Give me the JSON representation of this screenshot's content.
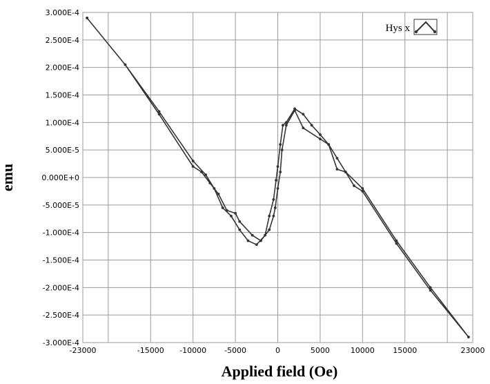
{
  "chart_data": {
    "type": "line",
    "title": "",
    "xlabel": "Applied field (Oe)",
    "ylabel": "emu",
    "xlim": [
      -23000,
      23000
    ],
    "ylim": [
      -0.0003,
      0.0003
    ],
    "x_ticks": [
      -23000,
      -15000,
      -10000,
      -5000,
      0,
      5000,
      10000,
      15000,
      23000
    ],
    "x_tick_labels": [
      "-23000",
      "-15000",
      "-10000",
      "-5000",
      "0",
      "5000",
      "10000",
      "15000",
      "23000"
    ],
    "y_ticks": [
      0.0003,
      0.00025,
      0.0002,
      0.00015,
      0.0001,
      5e-05,
      0,
      -5e-05,
      -0.0001,
      -0.00015,
      -0.0002,
      -0.00025,
      -0.0003
    ],
    "y_tick_labels": [
      "3.000E-4",
      "2.500E-4",
      "2.000E-4",
      "1.500E-4",
      "1.000E-4",
      "5.000E-5",
      "0.000E+0",
      "-5.000E-5",
      "-1.000E-4",
      "-1.500E-4",
      "-2.000E-4",
      "-2.500E-4",
      "-3.000E-4"
    ],
    "x_gridlines": [
      -23000,
      -20000,
      -15000,
      -10000,
      -5000,
      0,
      5000,
      10000,
      15000,
      20000,
      23000
    ],
    "grid": true,
    "legend": {
      "placement": "top-right",
      "entries": [
        "Hys x"
      ]
    },
    "series": [
      {
        "name": "Hys x",
        "color": "#333333",
        "x": [
          22500,
          18000,
          14000,
          10000,
          8000,
          7000,
          6000,
          5000,
          3000,
          2000,
          1000,
          500,
          300,
          0,
          -300,
          -500,
          -1000,
          -2000,
          -3000,
          -4500,
          -5000,
          -6000,
          -7000,
          -8000,
          -9000,
          -10000,
          -14000,
          -18000,
          -22500,
          -22500,
          -18000,
          -14000,
          -10000,
          -8500,
          -7500,
          -6500,
          -5500,
          -4500,
          -3500,
          -2500,
          -1500,
          -1000,
          -500,
          -200,
          0,
          300,
          600,
          1000,
          2000,
          3000,
          4000,
          5000,
          6000,
          7000,
          8000,
          9000,
          10000,
          14000,
          18000,
          22500
        ],
        "y": [
          -0.00029,
          -0.0002,
          -0.000115,
          -2e-05,
          1e-05,
          3.5e-05,
          6e-05,
          7e-05,
          9e-05,
          0.000122,
          9.5e-05,
          5e-05,
          1e-05,
          -2e-05,
          -5.5e-05,
          -7e-05,
          -9.5e-05,
          -0.000115,
          -0.000105,
          -8e-05,
          -6.5e-05,
          -6e-05,
          -3e-05,
          -1e-05,
          1e-05,
          2e-05,
          0.000115,
          0.000205,
          0.00029,
          0.00029,
          0.000205,
          0.00012,
          3e-05,
          5e-06,
          -2e-05,
          -5.5e-05,
          -7e-05,
          -9.5e-05,
          -0.000115,
          -0.000122,
          -0.000105,
          -7e-05,
          -4e-05,
          -5e-06,
          2e-05,
          6e-05,
          9.5e-05,
          0.0001,
          0.000125,
          0.000115,
          9.5e-05,
          7.8e-05,
          6e-05,
          1.5e-05,
          1e-05,
          -1.5e-05,
          -2.5e-05,
          -0.00012,
          -0.000205,
          -0.00029
        ]
      }
    ]
  }
}
